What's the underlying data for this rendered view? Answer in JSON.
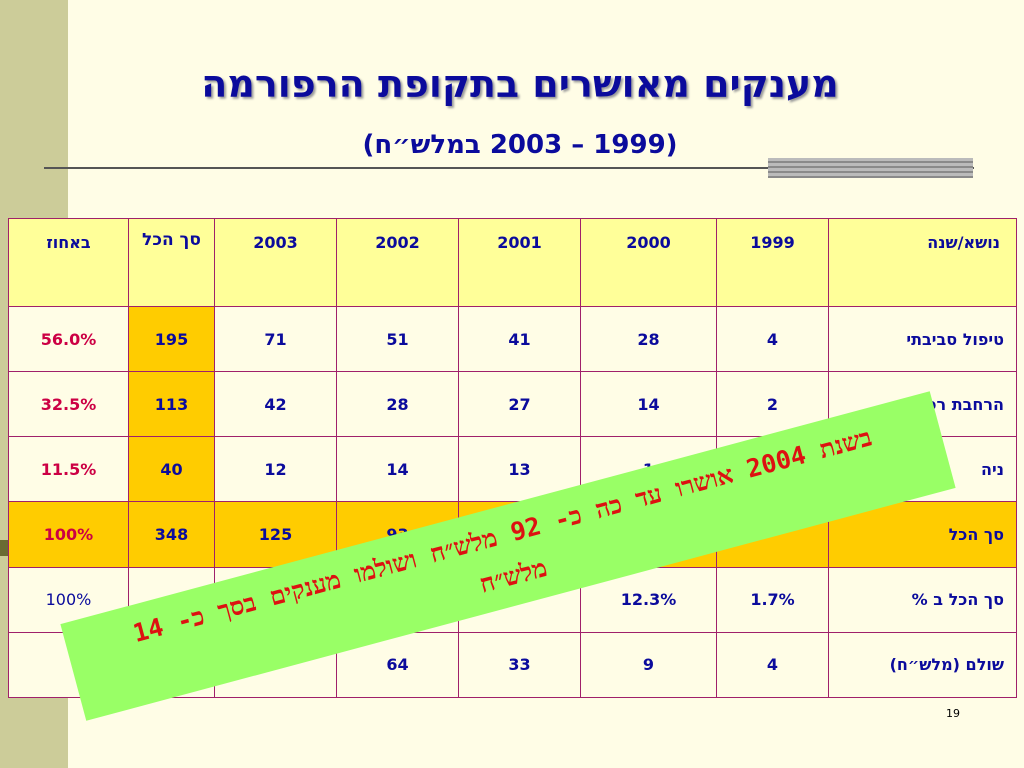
{
  "title": "מענקים מאושרים בתקופת הרפורמה",
  "subtitle": "(1999 – 2003 במלש״ח)",
  "table": {
    "headers": [
      "נושא/שנה",
      "1999",
      "2000",
      "2001",
      "2002",
      "2003",
      "סך הכל",
      "באחוז"
    ],
    "rows": [
      [
        "טיפול סביבתי",
        "4",
        "28",
        "41",
        "51",
        "71",
        "195",
        "56.0%"
      ],
      [
        "הרחבת רפת",
        "2",
        "14",
        "27",
        "28",
        "42",
        "113",
        "32.5%"
      ],
      [
        "ניה",
        "",
        "1",
        "13",
        "14",
        "12",
        "40",
        "11.5%"
      ],
      [
        "סך הכל",
        "",
        "",
        "",
        "93",
        "125",
        "348",
        "100%"
      ],
      [
        "סך הכל ב %",
        "1.7%",
        "12.3%",
        "",
        "",
        "",
        "",
        "100%"
      ],
      [
        "שולם (מלש״ח)",
        "4",
        "9",
        "33",
        "64",
        "",
        "",
        ""
      ]
    ]
  },
  "callout": {
    "line1": "בשנת 2004 אושרו עד כה כ- 92 מלש״ח ושולמו מענקים בסך כ- 14",
    "line2": "מלש״ח"
  },
  "slide_number": "19",
  "colors": {
    "background": "#fffde6",
    "header_fill": "#ffff99",
    "total_fill": "#ffcc00",
    "title_blue": "#0b0b9c",
    "percent_red": "#cc0044",
    "callout_green": "#99ff66",
    "callout_text": "#dd1111",
    "stripe": "#cccc99"
  }
}
